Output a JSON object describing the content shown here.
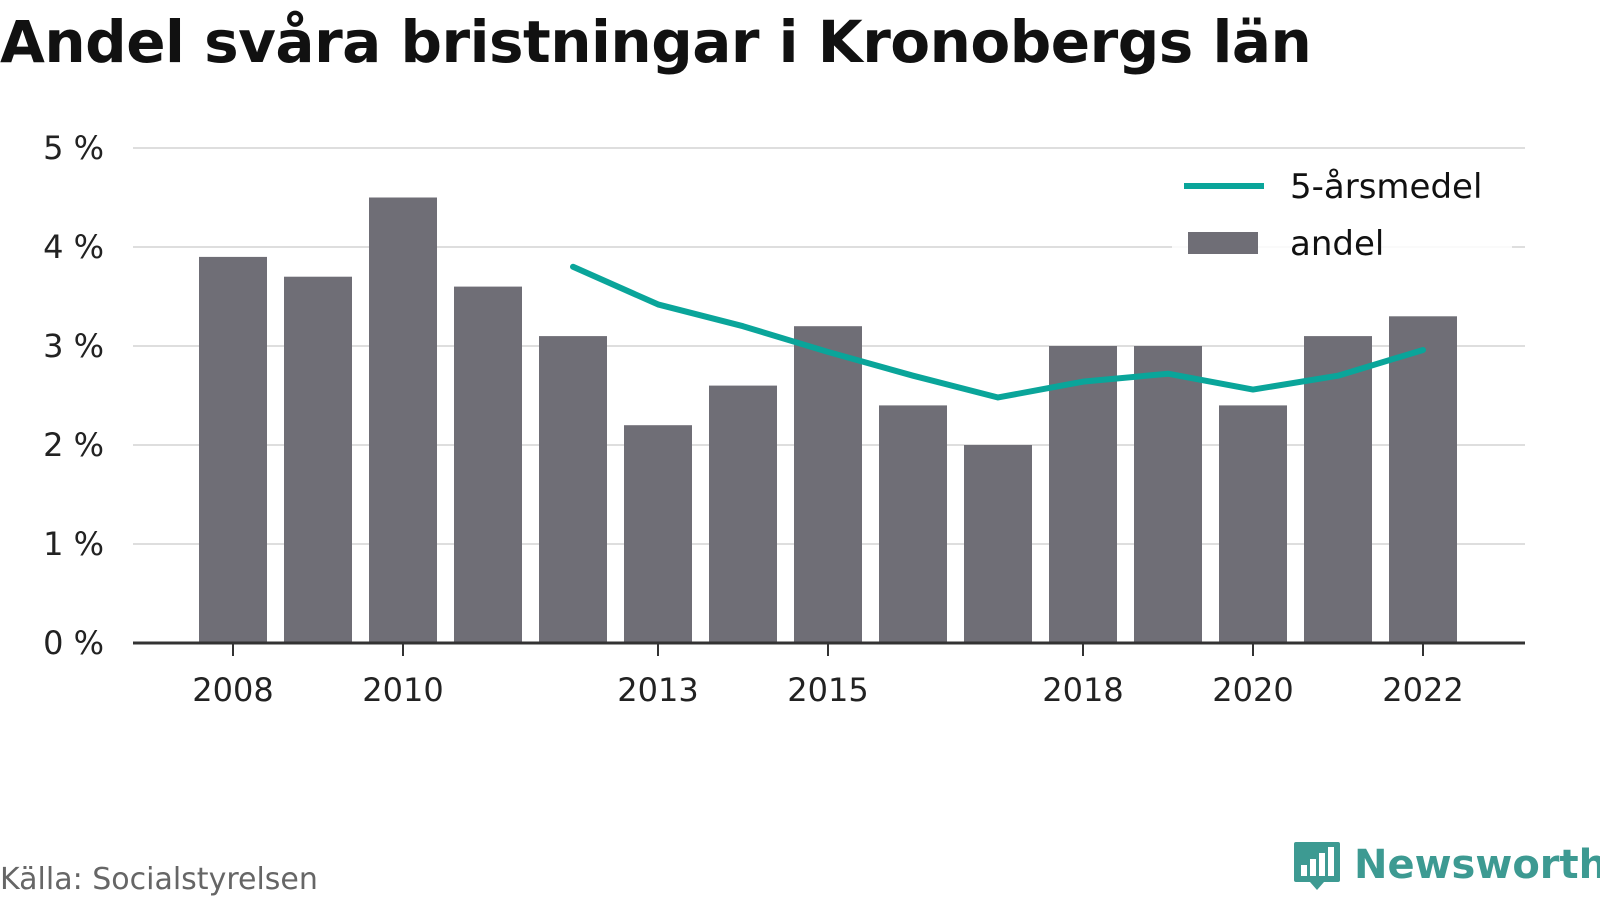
{
  "title": "Andel svåra bristningar i Kronobergs län",
  "source": "Källa: Socialstyrelsen",
  "brand": {
    "name": "Newsworthy",
    "icon": "bar-chart-speech-bubble-icon"
  },
  "colors": {
    "bar": "#6f6e76",
    "line": "#0aa59a",
    "grid": "#dedede",
    "axis": "#333333",
    "text": "#222222",
    "brand": "#3d9a92"
  },
  "chart_data": {
    "type": "bar",
    "x": [
      2008,
      2009,
      2010,
      2011,
      2012,
      2013,
      2014,
      2015,
      2016,
      2017,
      2018,
      2019,
      2020,
      2021,
      2022
    ],
    "series": [
      {
        "name": "andel",
        "type": "bar",
        "values": [
          3.9,
          3.7,
          4.5,
          3.6,
          3.1,
          2.2,
          2.6,
          3.2,
          2.4,
          2.0,
          3.0,
          3.0,
          2.4,
          3.1,
          3.3
        ]
      },
      {
        "name": "5-årsmedel",
        "type": "line",
        "values": [
          null,
          null,
          null,
          null,
          3.8,
          3.42,
          3.2,
          2.94,
          2.7,
          2.48,
          2.64,
          2.72,
          2.56,
          2.7,
          2.96
        ]
      }
    ],
    "ylim": [
      0,
      5
    ],
    "yticks": [
      0,
      1,
      2,
      3,
      4,
      5
    ],
    "ytick_labels": [
      "0 %",
      "1 %",
      "2 %",
      "3 %",
      "4 %",
      "5 %"
    ],
    "xticks": [
      2008,
      2010,
      2013,
      2015,
      2018,
      2020,
      2022
    ],
    "xtick_labels": [
      "2008",
      "2010",
      "2013",
      "2015",
      "2018",
      "2020",
      "2022"
    ],
    "grid": true,
    "legend_position": "top-right",
    "legend": [
      "5-årsmedel",
      "andel"
    ]
  }
}
